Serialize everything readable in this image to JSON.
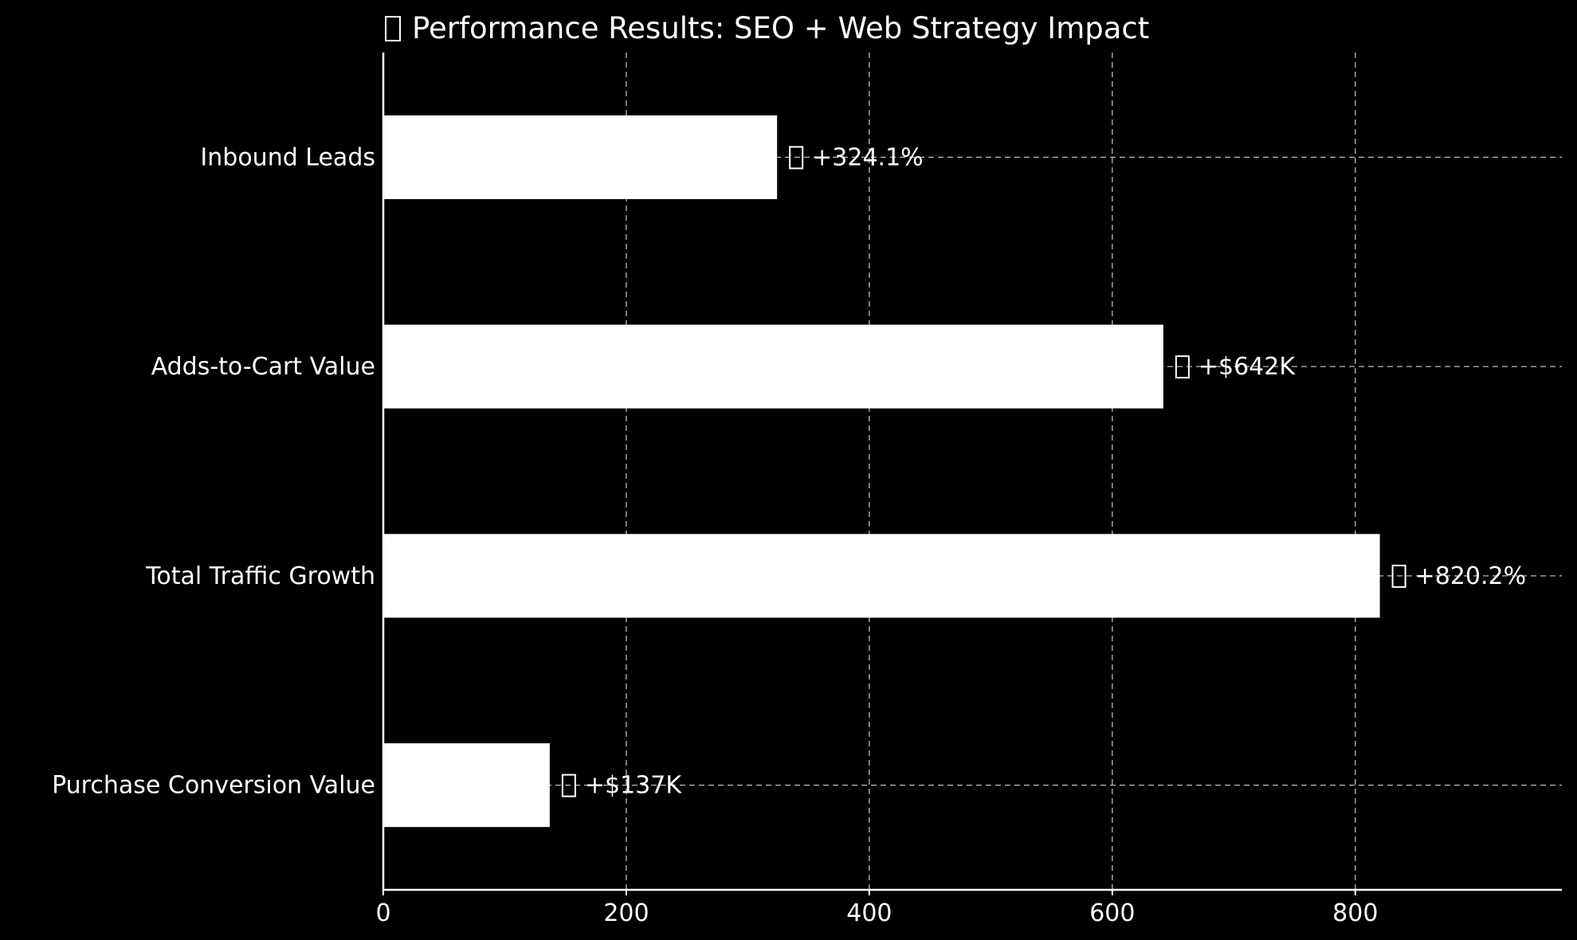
{
  "chart_data": {
    "type": "bar",
    "orientation": "horizontal",
    "title": "Performance Results: SEO + Web Strategy Impact",
    "title_has_glyph": true,
    "categories": [
      "Inbound Leads",
      "Adds-to-Cart Value",
      "Total Traffic Growth",
      "Purchase Conversion Value"
    ],
    "values": [
      324.1,
      642,
      820.2,
      137
    ],
    "data_labels": [
      "+324.1%",
      "+$642K",
      "+820.2%",
      "+$137K"
    ],
    "x_ticks": [
      "0",
      "200",
      "400",
      "600",
      "800"
    ],
    "x_tick_values": [
      0,
      200,
      400,
      600,
      800
    ],
    "xlim": [
      0,
      970
    ],
    "xlabel": "",
    "ylabel": "",
    "grid": true,
    "grid_style": "dashed",
    "legend": "none",
    "colors": {
      "background": "#000000",
      "bar": "#ffffff",
      "text": "#ffffff",
      "grid": "#bbbbbb",
      "axis": "#ffffff"
    }
  }
}
